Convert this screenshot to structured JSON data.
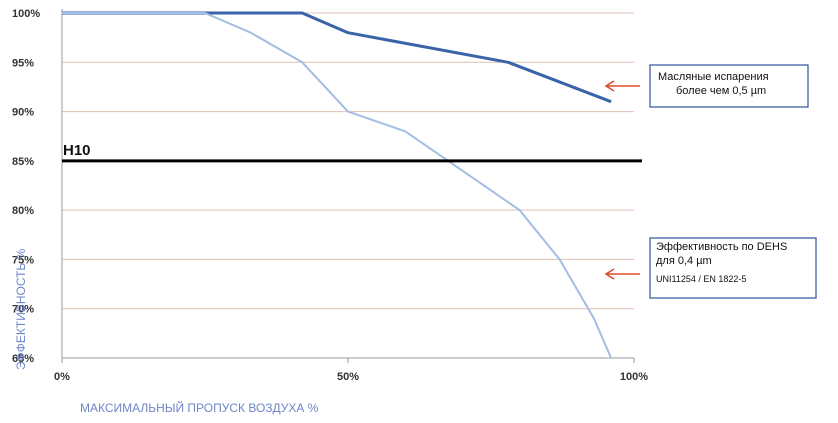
{
  "chart_data": {
    "type": "line",
    "xlabel": "МАКСИМАЛЬНЫЙ ПРОПУСК ВОЗДУХА %",
    "ylabel": "ЭФФЕКТИВНОСТЬ %",
    "xlim": [
      0,
      100
    ],
    "ylim": [
      65,
      100
    ],
    "x_ticks": [
      "0%",
      "50%",
      "100%"
    ],
    "y_ticks": [
      "100%",
      "95%",
      "90%",
      "85%",
      "80%",
      "75%",
      "70%",
      "65%"
    ],
    "grid": "horizontal",
    "series": [
      {
        "name": "",
        "color": "#3b63a8",
        "x": [
          0,
          42,
          50,
          78,
          96
        ],
        "y": [
          100,
          100,
          98,
          95,
          91
        ]
      },
      {
        "name": "",
        "color": "#a3bde3",
        "x": [
          0,
          25,
          33,
          42,
          50,
          60,
          70,
          80,
          87,
          93,
          96
        ],
        "y": [
          100,
          100,
          98,
          95,
          90,
          88,
          84,
          80,
          75,
          69,
          65
        ]
      }
    ],
    "reference_line": {
      "label": "H10",
      "y": 85,
      "color": "#000000"
    },
    "annotations": [
      {
        "lines": [
          "Масляные испарения",
          "более  чем 0,5 µm"
        ],
        "arrow_color": "#e04a2a"
      },
      {
        "lines": [
          "Эффективность по DEHS",
          "для 0,4 µm",
          "UNI11254 / EN 1822-5"
        ],
        "arrow_color": "#e04a2a"
      }
    ]
  }
}
